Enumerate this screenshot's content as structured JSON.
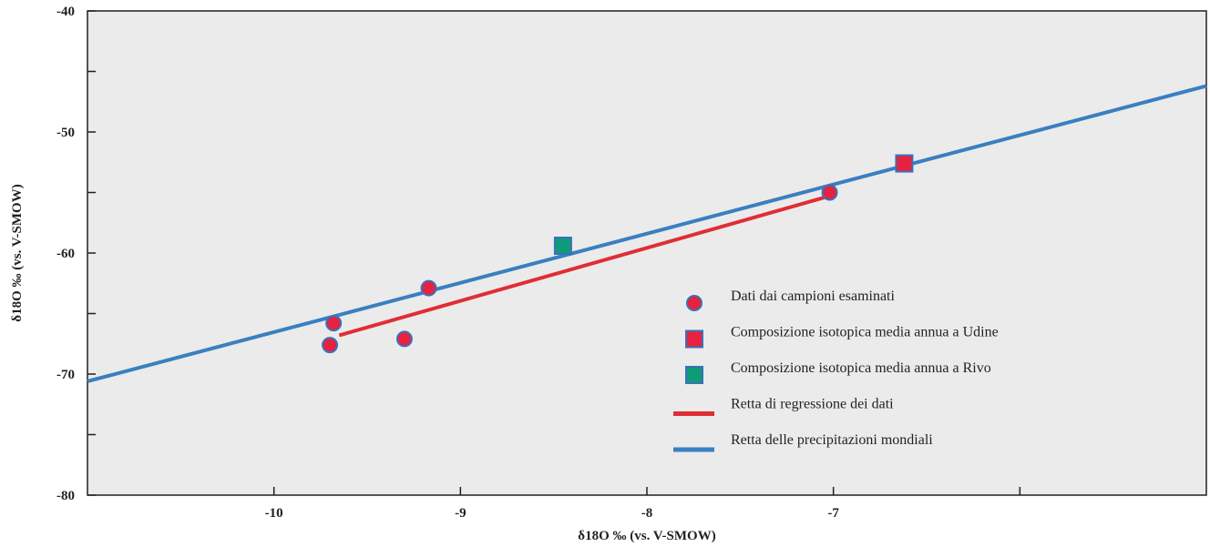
{
  "chart_data": {
    "type": "scatter",
    "title": "",
    "xlabel": "δ18O ‰ (vs. V-SMOW)",
    "ylabel": "δ18O ‰ (vs. V-SMOW)",
    "xlim": [
      -11.0,
      -5.0
    ],
    "ylim": [
      -80,
      -40
    ],
    "x_ticks": [
      -10,
      -9,
      -8,
      -7
    ],
    "x_tick_labels": [
      "-10",
      "-9",
      "-8",
      "-7"
    ],
    "x_minor_ticks": [
      -6
    ],
    "y_ticks": [
      -40,
      -50,
      -60,
      -70,
      -80
    ],
    "y_tick_labels": [
      "-40",
      "-50",
      "-60",
      "-70",
      "-80"
    ],
    "y_minor_ticks": [
      -45,
      -55,
      -65,
      -75
    ],
    "grid": false,
    "background": "#ebebeb",
    "legend_position": "lower-right",
    "series": [
      {
        "name": "Dati dai campioni esaminati",
        "kind": "points",
        "marker": "circle",
        "color": "#e8213f",
        "edge_color": "#3a72b8",
        "x": [
          -9.7,
          -9.68,
          -9.3,
          -9.17,
          -7.02
        ],
        "y": [
          -67.6,
          -65.8,
          -67.1,
          -62.9,
          -55.0
        ]
      },
      {
        "name": "Composizione isotopica media annua a Udine",
        "kind": "points",
        "marker": "square",
        "color": "#e8213f",
        "edge_color": "#3a72b8",
        "x": [
          -6.62
        ],
        "y": [
          -52.6
        ]
      },
      {
        "name": "Composizione isotopica media annua a Rivo",
        "kind": "points",
        "marker": "square",
        "color": "#0f9b77",
        "edge_color": "#3a72b8",
        "x": [
          -8.45
        ],
        "y": [
          -59.4
        ]
      },
      {
        "name": "Retta di regressione dei dati",
        "kind": "line",
        "color": "#e02d36",
        "x": [
          -9.65,
          -7.0
        ],
        "y": [
          -66.8,
          -55.2
        ]
      },
      {
        "name": "Retta delle precipitazioni mondiali",
        "kind": "line",
        "color": "#3a7fc1",
        "x": [
          -11.0,
          -5.0
        ],
        "y": [
          -70.6,
          -46.2
        ]
      }
    ]
  }
}
